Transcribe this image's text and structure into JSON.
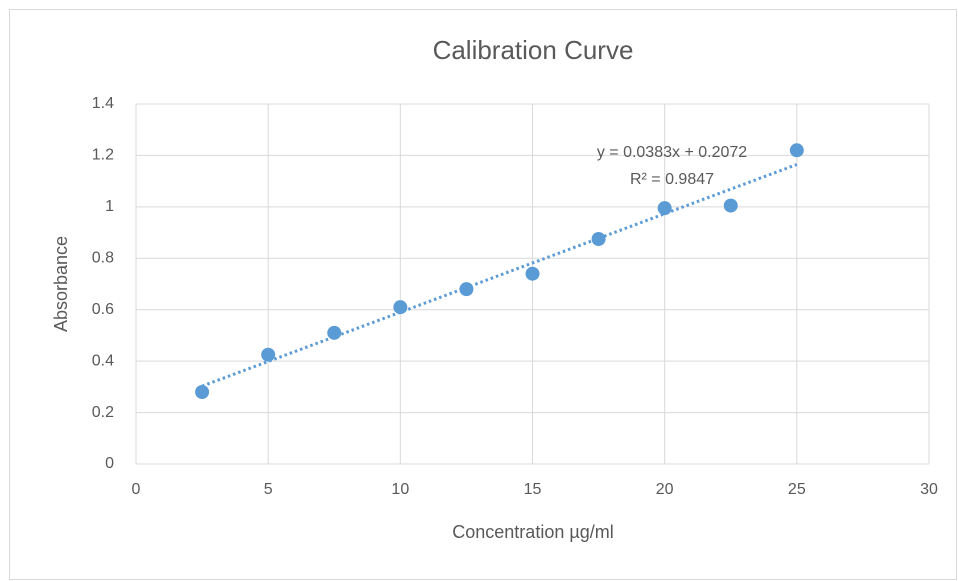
{
  "chart_data": {
    "type": "scatter",
    "title": "Calibration Curve",
    "x_label": "Concentration µg/ml",
    "y_label": "Absorbance",
    "x": [
      2.5,
      5,
      7.5,
      10,
      12.5,
      15,
      17.5,
      20,
      22.5,
      25
    ],
    "values": [
      0.28,
      0.425,
      0.51,
      0.61,
      0.68,
      0.74,
      0.875,
      0.995,
      1.005,
      1.22
    ],
    "color": "#5b9bd5",
    "xlim": [
      0,
      30
    ],
    "xticks": [
      0,
      5,
      10,
      15,
      20,
      25,
      30
    ],
    "ylim": [
      0,
      1.4
    ],
    "yticks": [
      0,
      0.2,
      0.4,
      0.6,
      0.8,
      1,
      1.2,
      1.4
    ],
    "grid": true,
    "trendline": {
      "slope": 0.0383,
      "intercept": 0.2072,
      "equation": "y = 0.0383x + 0.2072",
      "r_squared": "R² = 0.9847"
    }
  }
}
